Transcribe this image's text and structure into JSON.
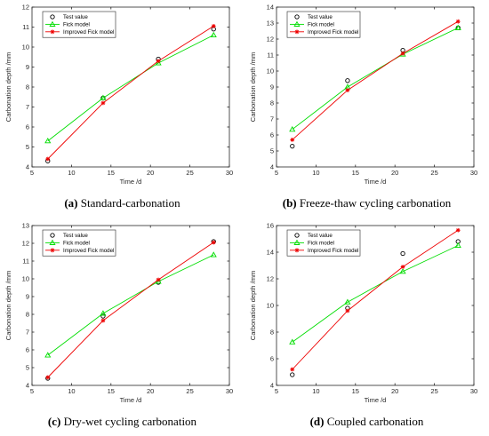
{
  "chart_data": [
    {
      "type": "line",
      "caption_tag": "(a)",
      "caption_text": "Standard-carbonation",
      "xlabel": "Time /d",
      "ylabel": "Carbonation depth /mm",
      "xlim": [
        5,
        30
      ],
      "ylim": [
        4,
        12
      ],
      "xticks": [
        5,
        10,
        15,
        20,
        25,
        30
      ],
      "yticks": [
        4,
        5,
        6,
        7,
        8,
        9,
        10,
        11,
        12
      ],
      "grid": false,
      "legend_position": "top-left",
      "x": [
        7,
        14,
        21,
        28
      ],
      "series": [
        {
          "name": "Test value",
          "values": [
            4.3,
            7.45,
            9.4,
            10.9
          ],
          "color": "#000000",
          "marker": "circle",
          "line": false
        },
        {
          "name": "Fick model",
          "values": [
            5.3,
            7.45,
            9.2,
            10.6
          ],
          "color": "#00dd00",
          "marker": "triangle",
          "line": true
        },
        {
          "name": "Improved Fick model",
          "values": [
            4.4,
            7.2,
            9.3,
            11.05
          ],
          "color": "#ee0000",
          "marker": "star",
          "line": true
        }
      ]
    },
    {
      "type": "line",
      "caption_tag": "(b)",
      "caption_text": "Freeze-thaw cycling carbonation",
      "xlabel": "Time /d",
      "ylabel": "Carbonation depth /mm",
      "xlim": [
        5,
        30
      ],
      "ylim": [
        4,
        14
      ],
      "xticks": [
        5,
        10,
        15,
        20,
        25,
        30
      ],
      "yticks": [
        4,
        5,
        6,
        7,
        8,
        9,
        10,
        11,
        12,
        13,
        14
      ],
      "grid": false,
      "legend_position": "top-left",
      "x": [
        7,
        14,
        21,
        28
      ],
      "series": [
        {
          "name": "Test value",
          "values": [
            5.3,
            9.4,
            11.3,
            12.7
          ],
          "color": "#000000",
          "marker": "circle",
          "line": false
        },
        {
          "name": "Fick model",
          "values": [
            6.35,
            9.0,
            11.05,
            12.7
          ],
          "color": "#00dd00",
          "marker": "triangle",
          "line": true
        },
        {
          "name": "Improved Fick model",
          "values": [
            5.7,
            8.8,
            11.1,
            13.1
          ],
          "color": "#ee0000",
          "marker": "star",
          "line": true
        }
      ]
    },
    {
      "type": "line",
      "caption_tag": "(c)",
      "caption_text": "Dry-wet cycling carbonation",
      "xlabel": "Time /d",
      "ylabel": "Carbonation depth /mm",
      "xlim": [
        5,
        30
      ],
      "ylim": [
        4,
        13
      ],
      "xticks": [
        5,
        10,
        15,
        20,
        25,
        30
      ],
      "yticks": [
        4,
        5,
        6,
        7,
        8,
        9,
        10,
        11,
        12,
        13
      ],
      "grid": false,
      "legend_position": "top-left",
      "x": [
        7,
        14,
        21,
        28
      ],
      "series": [
        {
          "name": "Test value",
          "values": [
            4.4,
            7.9,
            9.8,
            12.1
          ],
          "color": "#000000",
          "marker": "circle",
          "line": false
        },
        {
          "name": "Fick model",
          "values": [
            5.7,
            8.05,
            9.85,
            11.35
          ],
          "color": "#00dd00",
          "marker": "triangle",
          "line": true
        },
        {
          "name": "Improved Fick model",
          "values": [
            4.45,
            7.65,
            9.95,
            12.05
          ],
          "color": "#ee0000",
          "marker": "star",
          "line": true
        }
      ]
    },
    {
      "type": "line",
      "caption_tag": "(d)",
      "caption_text": "Coupled carbonation",
      "xlabel": "Time /d",
      "ylabel": "Carbonation depth /mm",
      "xlim": [
        5,
        30
      ],
      "ylim": [
        4,
        16
      ],
      "xticks": [
        5,
        10,
        15,
        20,
        25,
        30
      ],
      "yticks": [
        4,
        6,
        8,
        10,
        12,
        14,
        16
      ],
      "grid": false,
      "legend_position": "top-left",
      "x": [
        7,
        14,
        21,
        28
      ],
      "series": [
        {
          "name": "Test value",
          "values": [
            4.8,
            9.8,
            13.9,
            14.8
          ],
          "color": "#000000",
          "marker": "circle",
          "line": false
        },
        {
          "name": "Fick model",
          "values": [
            7.25,
            10.25,
            12.55,
            14.5
          ],
          "color": "#00dd00",
          "marker": "triangle",
          "line": true
        },
        {
          "name": "Improved Fick model",
          "values": [
            5.2,
            9.6,
            12.9,
            15.65
          ],
          "color": "#ee0000",
          "marker": "star",
          "line": true
        }
      ]
    }
  ]
}
